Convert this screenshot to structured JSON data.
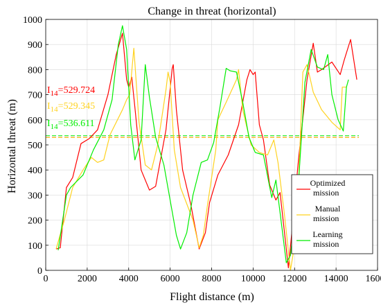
{
  "chart_data": {
    "type": "line",
    "title": "Change in threat (horizontal)",
    "xlabel": "Flight distance (m)",
    "ylabel": "Horizontal threat (m)",
    "xlim": [
      0,
      16000
    ],
    "ylim": [
      0,
      1000
    ],
    "x_ticks": [
      "0",
      "2000",
      "4000",
      "6000",
      "8000",
      "10000",
      "12000",
      "14000",
      "16000"
    ],
    "y_ticks": [
      "0",
      "100",
      "200",
      "300",
      "400",
      "500",
      "600",
      "700",
      "800",
      "900",
      "1000"
    ],
    "grid": true,
    "legend_position": "bottom-right",
    "series": [
      {
        "name": "Optimized mission",
        "color": "#ff0000",
        "points": [
          [
            500,
            85
          ],
          [
            700,
            90
          ],
          [
            1000,
            330
          ],
          [
            1300,
            370
          ],
          [
            1700,
            505
          ],
          [
            2100,
            525
          ],
          [
            2500,
            560
          ],
          [
            3000,
            700
          ],
          [
            3400,
            860
          ],
          [
            3700,
            945
          ],
          [
            3900,
            760
          ],
          [
            4000,
            730
          ],
          [
            4150,
            770
          ],
          [
            4300,
            650
          ],
          [
            4600,
            400
          ],
          [
            5000,
            320
          ],
          [
            5300,
            335
          ],
          [
            5800,
            560
          ],
          [
            6100,
            805
          ],
          [
            6150,
            820
          ],
          [
            6300,
            640
          ],
          [
            6600,
            400
          ],
          [
            7000,
            260
          ],
          [
            7400,
            85
          ],
          [
            7700,
            150
          ],
          [
            7900,
            270
          ],
          [
            8300,
            380
          ],
          [
            8800,
            460
          ],
          [
            9300,
            580
          ],
          [
            9700,
            760
          ],
          [
            9850,
            800
          ],
          [
            10000,
            780
          ],
          [
            10100,
            790
          ],
          [
            10300,
            580
          ],
          [
            10500,
            520
          ],
          [
            10800,
            340
          ],
          [
            11100,
            280
          ],
          [
            11300,
            310
          ],
          [
            11700,
            10
          ],
          [
            11900,
            180
          ],
          [
            12200,
            450
          ],
          [
            12600,
            760
          ],
          [
            12900,
            905
          ],
          [
            13100,
            790
          ],
          [
            13300,
            800
          ],
          [
            13800,
            830
          ],
          [
            14200,
            780
          ],
          [
            14400,
            840
          ],
          [
            14700,
            920
          ],
          [
            15000,
            760
          ]
        ]
      },
      {
        "name": "Manual mission",
        "color": "#ffd21f",
        "points": [
          [
            500,
            85
          ],
          [
            900,
            200
          ],
          [
            1300,
            330
          ],
          [
            1800,
            400
          ],
          [
            2200,
            450
          ],
          [
            2500,
            430
          ],
          [
            2800,
            440
          ],
          [
            3100,
            540
          ],
          [
            3700,
            640
          ],
          [
            3900,
            680
          ],
          [
            4050,
            700
          ],
          [
            4250,
            885
          ],
          [
            4500,
            590
          ],
          [
            4800,
            420
          ],
          [
            5100,
            400
          ],
          [
            5400,
            500
          ],
          [
            5800,
            720
          ],
          [
            5900,
            790
          ],
          [
            6000,
            750
          ],
          [
            6200,
            480
          ],
          [
            6500,
            330
          ],
          [
            7100,
            200
          ],
          [
            7400,
            90
          ],
          [
            7600,
            140
          ],
          [
            7800,
            260
          ],
          [
            8200,
            480
          ],
          [
            8300,
            600
          ],
          [
            8700,
            670
          ],
          [
            9200,
            760
          ],
          [
            9300,
            800
          ],
          [
            9500,
            640
          ],
          [
            9900,
            500
          ],
          [
            10300,
            470
          ],
          [
            10700,
            460
          ],
          [
            11000,
            520
          ],
          [
            11200,
            430
          ],
          [
            11500,
            230
          ],
          [
            11800,
            0
          ],
          [
            12100,
            150
          ],
          [
            12400,
            790
          ],
          [
            12600,
            820
          ],
          [
            12900,
            710
          ],
          [
            13300,
            640
          ],
          [
            13800,
            590
          ],
          [
            14200,
            560
          ],
          [
            14300,
            730
          ],
          [
            14500,
            730
          ]
        ]
      },
      {
        "name": "Learning mission",
        "color": "#00ee00",
        "points": [
          [
            600,
            80
          ],
          [
            1000,
            300
          ],
          [
            1200,
            330
          ],
          [
            1800,
            380
          ],
          [
            2300,
            480
          ],
          [
            2800,
            560
          ],
          [
            3200,
            680
          ],
          [
            3500,
            900
          ],
          [
            3700,
            975
          ],
          [
            3900,
            880
          ],
          [
            4100,
            580
          ],
          [
            4300,
            440
          ],
          [
            4600,
            520
          ],
          [
            4800,
            820
          ],
          [
            5000,
            690
          ],
          [
            5300,
            530
          ],
          [
            5700,
            420
          ],
          [
            6000,
            280
          ],
          [
            6300,
            140
          ],
          [
            6500,
            85
          ],
          [
            6800,
            150
          ],
          [
            7100,
            300
          ],
          [
            7500,
            430
          ],
          [
            7800,
            440
          ],
          [
            8100,
            510
          ],
          [
            8400,
            650
          ],
          [
            8700,
            805
          ],
          [
            8900,
            795
          ],
          [
            9200,
            790
          ],
          [
            9500,
            670
          ],
          [
            9800,
            530
          ],
          [
            10100,
            470
          ],
          [
            10500,
            460
          ],
          [
            10900,
            290
          ],
          [
            11100,
            360
          ],
          [
            11300,
            230
          ],
          [
            11600,
            30
          ],
          [
            11800,
            60
          ],
          [
            12200,
            360
          ],
          [
            12500,
            750
          ],
          [
            12800,
            880
          ],
          [
            13100,
            810
          ],
          [
            13400,
            800
          ],
          [
            13600,
            860
          ],
          [
            13800,
            700
          ],
          [
            14100,
            600
          ],
          [
            14350,
            555
          ],
          [
            14500,
            730
          ],
          [
            14600,
            760
          ]
        ]
      }
    ],
    "reference_lines": [
      {
        "series": "Optimized mission",
        "y": 529.724,
        "style": "dashed"
      },
      {
        "series": "Manual mission",
        "y": 529.345,
        "style": "dashed"
      },
      {
        "series": "Learning mission",
        "y": 536.611,
        "style": "dashed"
      }
    ],
    "annotations": [
      {
        "label_main": "I",
        "label_sub": "14",
        "value_text": "=529.724",
        "color": "#ff0000"
      },
      {
        "label_main": "I",
        "label_sub": "14",
        "value_text": "=529.345",
        "color": "#ffd21f"
      },
      {
        "label_main": "I",
        "label_sub": "14",
        "value_text": "=536.611",
        "color": "#00ee00"
      }
    ],
    "legend_entries": [
      {
        "line1": "Optimized",
        "line2": "mission",
        "color": "#ff0000"
      },
      {
        "line1": "Manual",
        "line2": "mission",
        "color": "#ffd21f"
      },
      {
        "line1": "Learning",
        "line2": "mission",
        "color": "#00ee00"
      }
    ]
  }
}
